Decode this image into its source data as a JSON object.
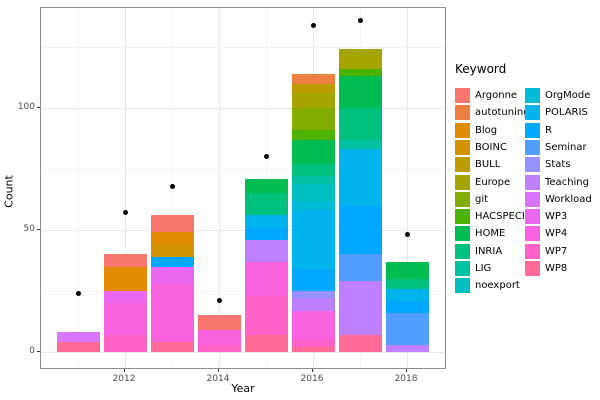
{
  "chart_data": {
    "type": "bar",
    "stacked": true,
    "title": "",
    "xlabel": "Year",
    "ylabel": "Count",
    "x_ticks": [
      2012,
      2014,
      2016,
      2018
    ],
    "y_ticks": [
      0,
      50,
      100
    ],
    "y_minor_ticks": [
      25,
      75,
      125
    ],
    "x_minor_years": [
      2011,
      2013,
      2015,
      2017
    ],
    "ylim": [
      0,
      141
    ],
    "grid": "on",
    "legend_position": "right",
    "categories": [
      2011,
      2012,
      2013,
      2014,
      2015,
      2016,
      2017,
      2018
    ],
    "bars": [
      {
        "year": 2011,
        "total": 8,
        "segments": [
          {
            "keyword": "Workload",
            "value": 4
          },
          {
            "keyword": "WP8",
            "value": 4
          }
        ]
      },
      {
        "year": 2012,
        "total": 40,
        "segments": [
          {
            "keyword": "Argonne",
            "value": 5
          },
          {
            "keyword": "Blog",
            "value": 10
          },
          {
            "keyword": "WP3",
            "value": 5
          },
          {
            "keyword": "WP4",
            "value": 13
          },
          {
            "keyword": "WP7",
            "value": 7
          }
        ]
      },
      {
        "year": 2013,
        "total": 56,
        "segments": [
          {
            "keyword": "Argonne",
            "value": 7
          },
          {
            "keyword": "Blog",
            "value": 5
          },
          {
            "keyword": "BOINC",
            "value": 5
          },
          {
            "keyword": "R",
            "value": 4
          },
          {
            "keyword": "WP3",
            "value": 7
          },
          {
            "keyword": "WP4",
            "value": 24
          },
          {
            "keyword": "WP8",
            "value": 4
          }
        ]
      },
      {
        "year": 2014,
        "total": 15,
        "segments": [
          {
            "keyword": "Argonne",
            "value": 6
          },
          {
            "keyword": "WP4",
            "value": 6
          },
          {
            "keyword": "WP7",
            "value": 3
          }
        ]
      },
      {
        "year": 2015,
        "total": 71,
        "segments": [
          {
            "keyword": "HOME",
            "value": 6
          },
          {
            "keyword": "INRIA",
            "value": 9
          },
          {
            "keyword": "POLARIS",
            "value": 5
          },
          {
            "keyword": "R",
            "value": 5
          },
          {
            "keyword": "Teaching",
            "value": 9
          },
          {
            "keyword": "WP4",
            "value": 14
          },
          {
            "keyword": "WP7",
            "value": 16
          },
          {
            "keyword": "WP8",
            "value": 7
          }
        ]
      },
      {
        "year": 2016,
        "total": 114,
        "segments": [
          {
            "keyword": "autotuning",
            "value": 4
          },
          {
            "keyword": "BULL",
            "value": 4
          },
          {
            "keyword": "Europe",
            "value": 6
          },
          {
            "keyword": "git",
            "value": 9
          },
          {
            "keyword": "HACSPECIS",
            "value": 4
          },
          {
            "keyword": "HOME",
            "value": 10
          },
          {
            "keyword": "INRIA",
            "value": 5
          },
          {
            "keyword": "LIG",
            "value": 3
          },
          {
            "keyword": "noexport",
            "value": 7
          },
          {
            "keyword": "OrgMode",
            "value": 4
          },
          {
            "keyword": "POLARIS",
            "value": 24
          },
          {
            "keyword": "R",
            "value": 9
          },
          {
            "keyword": "Stats",
            "value": 3
          },
          {
            "keyword": "Teaching",
            "value": 5
          },
          {
            "keyword": "WP4",
            "value": 12
          },
          {
            "keyword": "WP7",
            "value": 3
          },
          {
            "keyword": "WP8",
            "value": 2
          }
        ]
      },
      {
        "year": 2017,
        "total": 124,
        "segments": [
          {
            "keyword": "Europe",
            "value": 8
          },
          {
            "keyword": "HACSPECIS",
            "value": 3
          },
          {
            "keyword": "HOME",
            "value": 13
          },
          {
            "keyword": "INRIA",
            "value": 13
          },
          {
            "keyword": "LIG",
            "value": 4
          },
          {
            "keyword": "POLARIS",
            "value": 23
          },
          {
            "keyword": "R",
            "value": 20
          },
          {
            "keyword": "Seminar",
            "value": 11
          },
          {
            "keyword": "Teaching",
            "value": 22
          },
          {
            "keyword": "WP8",
            "value": 7
          }
        ]
      },
      {
        "year": 2018,
        "total": 37,
        "segments": [
          {
            "keyword": "HOME",
            "value": 7
          },
          {
            "keyword": "INRIA",
            "value": 4
          },
          {
            "keyword": "POLARIS",
            "value": 5
          },
          {
            "keyword": "R",
            "value": 5
          },
          {
            "keyword": "Seminar",
            "value": 13
          },
          {
            "keyword": "Teaching",
            "value": 3
          }
        ]
      }
    ],
    "points": [
      {
        "year": 2011,
        "value": 24
      },
      {
        "year": 2012,
        "value": 57
      },
      {
        "year": 2013,
        "value": 68
      },
      {
        "year": 2014,
        "value": 21
      },
      {
        "year": 2015,
        "value": 80
      },
      {
        "year": 2016,
        "value": 134
      },
      {
        "year": 2017,
        "value": 136
      },
      {
        "year": 2018,
        "value": 48
      }
    ],
    "point_color": "#000000"
  },
  "axes": {
    "x_title": "Year",
    "y_title": "Count",
    "x_tick_labels": [
      "2012",
      "2014",
      "2016",
      "2018"
    ],
    "y_tick_labels": [
      "0",
      "50",
      "100"
    ]
  },
  "legend": {
    "title": "Keyword",
    "columns": [
      [
        "Argonne",
        "autotuning",
        "Blog",
        "BOINC",
        "BULL",
        "Europe",
        "git",
        "HACSPECIS",
        "HOME",
        "INRIA",
        "LIG",
        "noexport"
      ],
      [
        "OrgMode",
        "POLARIS",
        "R",
        "Seminar",
        "Stats",
        "Teaching",
        "Workload",
        "WP3",
        "WP4",
        "WP7",
        "WP8"
      ]
    ],
    "colors": {
      "Argonne": "#F8766D",
      "autotuning": "#EE7F42",
      "Blog": "#E08B00",
      "BOINC": "#D19400",
      "BULL": "#BD9C00",
      "Europe": "#A4A500",
      "git": "#82AC00",
      "HACSPECIS": "#4CB400",
      "HOME": "#00BC51",
      "INRIA": "#00C07D",
      "LIG": "#00C1A2",
      "noexport": "#00BFC0",
      "OrgMode": "#00BCD6",
      "POLARIS": "#00B4EC",
      "R": "#00A8FF",
      "Seminar": "#509EFF",
      "Stats": "#9591FF",
      "Teaching": "#BE80FF",
      "Workload": "#D974FC",
      "WP3": "#EC67F0",
      "WP4": "#F862DE",
      "WP7": "#FF61C7",
      "WP8": "#FF6A97"
    }
  }
}
